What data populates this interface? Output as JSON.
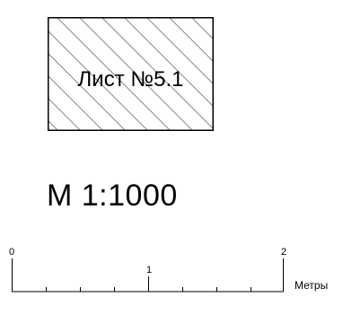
{
  "sheet": {
    "label": "Лист №5.1"
  },
  "scale": {
    "title": "М 1:1000"
  },
  "scalebar": {
    "tick_labels": [
      "0",
      "1",
      "2"
    ],
    "unit": "Метры"
  },
  "colors": {
    "stroke": "#000000",
    "hatch": "#8a8a8a",
    "background": "#ffffff"
  }
}
